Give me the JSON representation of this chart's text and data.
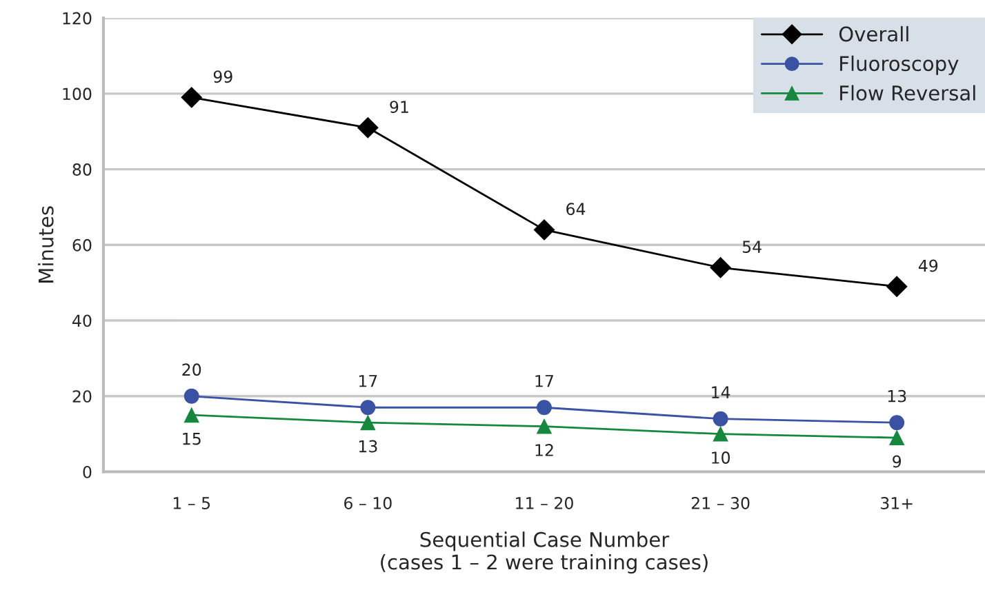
{
  "chart_data": {
    "type": "line",
    "xlabel": "Sequential Case Number\n(cases 1 – 2 were training cases)",
    "ylabel": "Minutes",
    "categories": [
      "1 – 5",
      "6 – 10",
      "11 – 20",
      "21 – 30",
      "31+"
    ],
    "series": [
      {
        "name": "Overall",
        "color": "#000000",
        "marker": "diamond",
        "values": [
          99,
          91,
          64,
          54,
          49
        ]
      },
      {
        "name": "Fluoroscopy",
        "color": "#3a52a3",
        "marker": "circle",
        "values": [
          20,
          17,
          17,
          14,
          13
        ]
      },
      {
        "name": "Flow Reversal",
        "color": "#15883e",
        "marker": "triangle",
        "values": [
          15,
          13,
          12,
          10,
          9
        ]
      }
    ],
    "ylim": [
      0,
      120
    ],
    "yticks": [
      0,
      20,
      40,
      60,
      80,
      100,
      120
    ],
    "grid": "y",
    "legend": "top right",
    "data_labels": true,
    "line_style": "solid"
  }
}
